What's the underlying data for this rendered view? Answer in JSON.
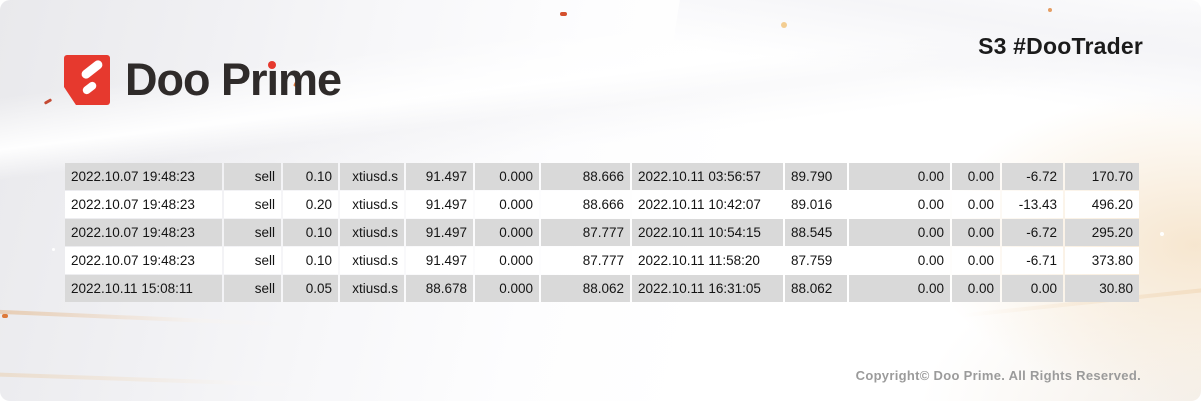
{
  "brand": {
    "name": "Doo Prime",
    "name_pre_i": "Doo Pr",
    "name_i": "ı",
    "name_post_i": "me"
  },
  "header": {
    "program_label": "S3 #DooTrader"
  },
  "footer": {
    "copyright": "Copyright© Doo Prime. All Rights Reserved."
  },
  "colors": {
    "brand_red": "#e6392e",
    "row_stripe": "#d9d9d9",
    "table_text": "#141414"
  },
  "trades": {
    "rows": [
      [
        "2022.10.07 19:48:23",
        "sell",
        "0.10",
        "xtiusd.s",
        "91.497",
        "0.000",
        "88.666",
        "2022.10.11 03:56:57",
        "89.790",
        "0.00",
        "0.00",
        "-6.72",
        "170.70"
      ],
      [
        "2022.10.07 19:48:23",
        "sell",
        "0.20",
        "xtiusd.s",
        "91.497",
        "0.000",
        "88.666",
        "2022.10.11 10:42:07",
        "89.016",
        "0.00",
        "0.00",
        "-13.43",
        "496.20"
      ],
      [
        "2022.10.07 19:48:23",
        "sell",
        "0.10",
        "xtiusd.s",
        "91.497",
        "0.000",
        "87.777",
        "2022.10.11 10:54:15",
        "88.545",
        "0.00",
        "0.00",
        "-6.72",
        "295.20"
      ],
      [
        "2022.10.07 19:48:23",
        "sell",
        "0.10",
        "xtiusd.s",
        "91.497",
        "0.000",
        "87.777",
        "2022.10.11 11:58:20",
        "87.759",
        "0.00",
        "0.00",
        "-6.71",
        "373.80"
      ],
      [
        "2022.10.11 15:08:11",
        "sell",
        "0.05",
        "xtiusd.s",
        "88.678",
        "0.000",
        "88.062",
        "2022.10.11 16:31:05",
        "88.062",
        "0.00",
        "0.00",
        "0.00",
        "30.80"
      ]
    ]
  }
}
